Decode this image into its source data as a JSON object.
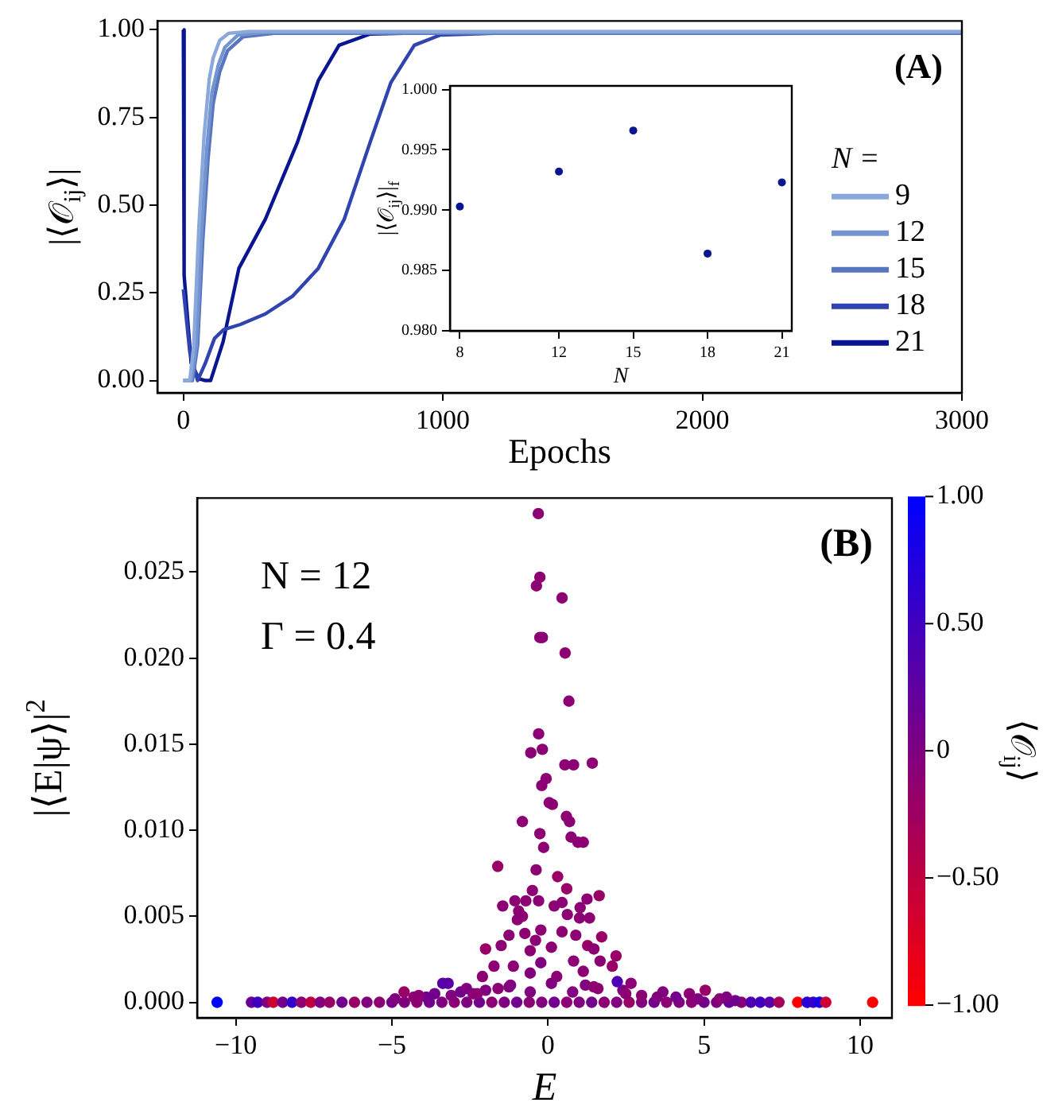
{
  "chart_data": [
    {
      "type": "line",
      "xlabel": "Epochs",
      "ylabel": "|⟨𝒪$_{ij}$⟩|",
      "legend": "right",
      "legend_title": "N =",
      "marker": "none",
      "annotations": [
        "(A)"
      ],
      "xlim": [
        -100,
        3000
      ],
      "xticks": [
        0,
        1000,
        2000,
        3000
      ],
      "ylim": [
        -0.035,
        1.025
      ],
      "yticks": [
        {
          "value": 0,
          "label": "0.00"
        },
        {
          "value": 0.25,
          "label": "0.25"
        },
        {
          "value": 0.5,
          "label": "0.50"
        },
        {
          "value": 0.75,
          "label": "0.75"
        },
        {
          "value": 1,
          "label": "1.00"
        }
      ],
      "series": [
        {
          "name": "9",
          "color": "#8aa8dc",
          "x": [
            0,
            25,
            40,
            60,
            80,
            100,
            115,
            140,
            175,
            250,
            1000,
            3000
          ],
          "values": [
            0,
            0,
            0.1,
            0.44,
            0.7,
            0.86,
            0.92,
            0.97,
            0.99,
            0.995,
            0.995,
            0.995
          ]
        },
        {
          "name": "12",
          "color": "#7494d0",
          "x": [
            0,
            30,
            50,
            70,
            90,
            110,
            135,
            160,
            210,
            320,
            1000,
            3000
          ],
          "values": [
            0,
            0,
            0.1,
            0.42,
            0.66,
            0.82,
            0.9,
            0.95,
            0.985,
            0.993,
            0.993,
            0.993
          ]
        },
        {
          "name": "15",
          "color": "#5876c0",
          "x": [
            0,
            35,
            55,
            75,
            95,
            115,
            140,
            170,
            230,
            350,
            1000,
            3000
          ],
          "values": [
            0,
            0,
            0.1,
            0.4,
            0.63,
            0.79,
            0.88,
            0.94,
            0.98,
            0.99,
            0.99,
            0.99
          ]
        },
        {
          "name": "18",
          "color": "#2f44ae",
          "x": [
            0,
            25,
            55,
            85,
            120,
            155,
            220,
            316,
            420,
            520,
            620,
            720,
            800,
            890,
            990,
            1200,
            3000
          ],
          "values": [
            0.26,
            0.08,
            0,
            0.05,
            0.12,
            0.145,
            0.16,
            0.19,
            0.24,
            0.32,
            0.46,
            0.68,
            0.85,
            0.956,
            0.985,
            0.99,
            0.99
          ]
        },
        {
          "name": "21",
          "color": "#0a1690",
          "x": [
            0,
            3,
            30,
            60,
            85,
            105,
            153,
            214,
            316,
            440,
            520,
            600,
            720,
            850,
            3000
          ],
          "values": [
            1,
            0.3,
            0.05,
            0.005,
            0,
            0,
            0.11,
            0.32,
            0.46,
            0.68,
            0.855,
            0.956,
            0.988,
            0.99,
            0.99
          ]
        }
      ]
    },
    {
      "type": "scatter",
      "xlabel": "N",
      "ylabel": "|⟨𝒪$_{ij}$⟩|$_{f}$",
      "marker": "circle",
      "color": "#0a1690",
      "xlim": [
        7.6,
        21.4
      ],
      "xticks": [
        8,
        12,
        15,
        18,
        21
      ],
      "ylim": [
        0.98,
        1.0003
      ],
      "yticks": [
        {
          "value": 0.98,
          "label": "0.980"
        },
        {
          "value": 0.985,
          "label": "0.985"
        },
        {
          "value": 0.99,
          "label": "0.990"
        },
        {
          "value": 0.995,
          "label": "0.995"
        },
        {
          "value": 1,
          "label": "1.000"
        }
      ],
      "x": [
        8,
        12,
        15,
        18,
        21
      ],
      "values": [
        0.9903,
        0.9932,
        0.9966,
        0.9864,
        0.9923
      ]
    },
    {
      "type": "scatter",
      "xlabel": "E",
      "ylabel": "|⟨E|ψ⟩|$^{2}$",
      "clabel": "⟨𝒪$_{ij}$⟩",
      "marker": "circle",
      "annotations": [
        "(B)",
        "N = 12",
        "Γ = 0.4"
      ],
      "xlim": [
        -11.24,
        11.02
      ],
      "xticks": [
        {
          "value": -10,
          "label": "−10"
        },
        {
          "value": -5,
          "label": "−5"
        },
        0,
        5,
        10
      ],
      "ylim": [
        -0.0009,
        0.0293
      ],
      "yticks": [
        {
          "value": 0,
          "label": "0.000"
        },
        {
          "value": 0.005,
          "label": "0.005"
        },
        {
          "value": 0.01,
          "label": "0.010"
        },
        {
          "value": 0.015,
          "label": "0.015"
        },
        {
          "value": 0.02,
          "label": "0.020"
        },
        {
          "value": 0.025,
          "label": "0.025"
        }
      ],
      "clim": [
        -1,
        1
      ],
      "cticks": [
        {
          "value": -1,
          "label": "−1.00"
        },
        {
          "value": -0.5,
          "label": "−0.50"
        },
        0,
        {
          "value": 0.5,
          "label": "0.50"
        },
        {
          "value": 1,
          "label": "1.00"
        }
      ],
      "x": [
        -10.6,
        -9.5,
        -9.3,
        -9.0,
        -8.8,
        -8.5,
        -8.2,
        -7.9,
        -7.6,
        -7.3,
        -7.0,
        -6.6,
        -6.2,
        -5.8,
        -5.4,
        -5.0,
        -4.6,
        -4.2,
        -3.8,
        -3.4,
        -3.0,
        -2.6,
        -2.2,
        -1.8,
        -1.4,
        -1.0,
        -0.6,
        -0.2,
        0.2,
        0.6,
        1.0,
        1.4,
        1.8,
        2.2,
        2.6,
        3.0,
        3.4,
        3.8,
        4.2,
        4.6,
        5.0,
        5.4,
        5.8,
        6.2,
        6.5,
        6.8,
        7.1,
        7.4,
        8.0,
        8.3,
        8.5,
        8.7,
        8.9,
        10.4,
        -4.9,
        -4.3,
        -3.9,
        -3.1,
        -2.8,
        -2.4,
        -2.0,
        -1.6,
        -1.2,
        1.2,
        1.6,
        2.4,
        3.0,
        3.5,
        4.1,
        4.8,
        5.5,
        6.0,
        -0.31,
        -0.26,
        -0.37,
        0.45,
        -0.26,
        -0.18,
        0.55,
        0.67,
        -0.3,
        -0.55,
        -0.18,
        0.54,
        0.82,
        1.42,
        -0.06,
        -0.2,
        0.04,
        0.14,
        0.59,
        0.69,
        -0.82,
        -0.26,
        0.74,
        0.96,
        1.13,
        -0.14,
        -1.61,
        -0.38,
        0.31,
        0.6,
        -0.5,
        1.64,
        1.25,
        -1.06,
        -0.71,
        -0.3,
        -1.45,
        0.2,
        0.45,
        1.03,
        -0.94,
        -0.82,
        0.62,
        1.33,
        -0.98,
        1.01,
        -0.74,
        -0.23,
        0.45,
        0.89,
        1.72,
        -1.25,
        -0.4,
        -2.0,
        -1.5,
        -0.57,
        0.11,
        1.27,
        1.47,
        2.18,
        -1.73,
        -1.11,
        -0.23,
        0.82,
        1.67,
        2.06,
        -2.1,
        -0.57,
        0.28,
        1.13,
        2.22,
        -3.37,
        -3.2,
        2.66,
        -1.25,
        0.11,
        1.47,
        5.04,
        -4.61,
        -2.61,
        3.68,
        4.53,
        -4.14,
        -3.63,
        -2.27,
        -0.57,
        0.79,
        2.49,
        5.72
      ],
      "values": [
        0,
        0,
        0,
        0,
        0,
        0,
        0,
        0,
        0,
        0,
        0,
        0,
        0,
        0,
        0,
        0,
        0,
        0,
        0,
        0,
        0,
        0,
        0,
        0,
        0,
        0,
        0,
        0,
        0,
        0,
        0,
        0,
        0,
        0,
        0,
        0,
        0,
        0,
        0,
        0,
        0,
        0,
        0,
        0,
        0,
        0,
        0,
        0,
        0,
        0,
        0,
        0,
        0,
        0,
        0.0002,
        0.0003,
        0.0003,
        0.0004,
        0.0006,
        0.0005,
        0.0007,
        0.0008,
        0.001,
        0.001,
        0.0008,
        0.0007,
        0.0004,
        0.0003,
        0.0003,
        0.0002,
        0.0002,
        0.0001,
        0.0284,
        0.0247,
        0.0242,
        0.0235,
        0.0212,
        0.0212,
        0.0203,
        0.0175,
        0.0156,
        0.0145,
        0.0147,
        0.0138,
        0.0138,
        0.0139,
        0.013,
        0.0126,
        0.0116,
        0.0115,
        0.0108,
        0.0105,
        0.0105,
        0.0098,
        0.0096,
        0.0093,
        0.0093,
        0.009,
        0.0079,
        0.0077,
        0.0073,
        0.0066,
        0.0065,
        0.0062,
        0.006,
        0.0059,
        0.0059,
        0.0059,
        0.0056,
        0.0056,
        0.0058,
        0.0055,
        0.0053,
        0.005,
        0.0051,
        0.0049,
        0.0048,
        0.0049,
        0.004,
        0.0042,
        0.0041,
        0.0039,
        0.0038,
        0.0039,
        0.0036,
        0.0031,
        0.0033,
        0.003,
        0.0032,
        0.0033,
        0.0031,
        0.0027,
        0.0021,
        0.0021,
        0.0023,
        0.0024,
        0.0024,
        0.0021,
        0.0015,
        0.0017,
        0.0015,
        0.0018,
        0.0012,
        0.0011,
        0.0011,
        0.0011,
        0.0009,
        0.0011,
        0.0009,
        0.0007,
        0.0006,
        0.0008,
        0.0006,
        0.0005,
        0.0004,
        0.0005,
        0.0005,
        0.0006,
        0.0006,
        0.0005,
        0.0003
      ],
      "cvalues": [
        1,
        0.2,
        0.5,
        0,
        -0.6,
        0.1,
        0.6,
        -0.1,
        -0.5,
        0,
        -0.2,
        0.1,
        -0.2,
        0,
        -0.1,
        0.1,
        0,
        -0.1,
        0.1,
        0,
        -0.1,
        0,
        0.1,
        -0.1,
        0,
        0.1,
        -0.1,
        0,
        0.1,
        -0.1,
        0,
        0.1,
        -0.1,
        0,
        -0.2,
        0,
        0.1,
        -0.1,
        0,
        -0.1,
        0.1,
        0,
        0.2,
        -0.1,
        0.4,
        0.5,
        0.3,
        -0.3,
        -1,
        0.7,
        0.6,
        0.8,
        -0.6,
        -1,
        0,
        -0.1,
        0.1,
        0,
        0.1,
        -0.1,
        0,
        -0.1,
        0,
        0,
        -0.1,
        0,
        -0.1,
        0,
        0.1,
        0,
        -0.1,
        0.1,
        -0.1,
        -0.1,
        -0.1,
        -0.1,
        -0.1,
        -0.1,
        -0.1,
        -0.1,
        -0.1,
        -0.1,
        -0.1,
        -0.1,
        -0.1,
        -0.1,
        -0.1,
        -0.1,
        -0.1,
        -0.1,
        -0.1,
        -0.1,
        -0.1,
        -0.1,
        -0.1,
        -0.1,
        -0.1,
        -0.1,
        -0.2,
        -0.1,
        -0.2,
        -0.2,
        -0.1,
        -0.2,
        -0.1,
        -0.1,
        -0.1,
        -0.1,
        -0.1,
        -0.1,
        -0.1,
        -0.1,
        -0.1,
        -0.1,
        -0.1,
        -0.1,
        -0.1,
        -0.1,
        -0.1,
        -0.1,
        -0.1,
        -0.1,
        -0.2,
        -0.1,
        -0.1,
        -0.2,
        -0.1,
        -0.1,
        -0.1,
        -0.2,
        -0.1,
        -0.2,
        -0.1,
        -0.1,
        0,
        -0.1,
        -0.1,
        -0.2,
        -0.1,
        0,
        -0.1,
        -0.1,
        0.4,
        0.3,
        0.3,
        -0.1,
        0,
        0,
        -0.1,
        -0.2,
        -0.2,
        0,
        0,
        -0.1,
        -0.1,
        0.1,
        -0.1,
        0,
        0,
        -0.1,
        0
      ]
    }
  ]
}
